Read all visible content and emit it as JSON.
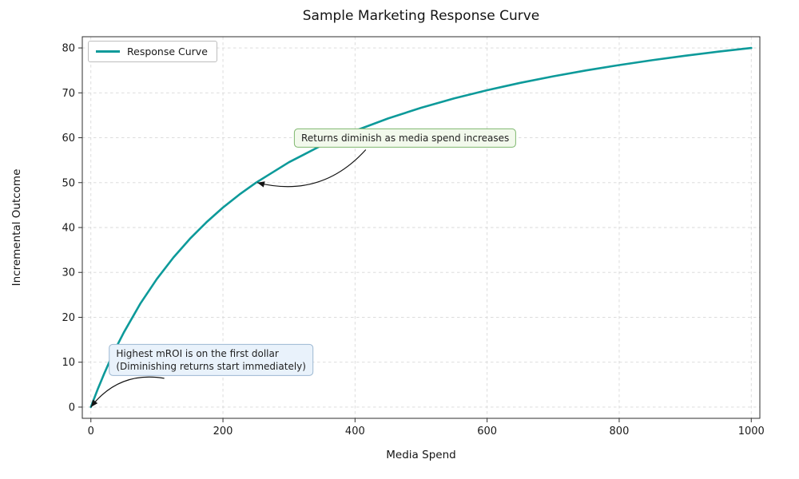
{
  "chart_data": {
    "type": "line",
    "title": "Sample Marketing Response Curve",
    "xlabel": "Media Spend",
    "ylabel": "Incremental Outcome",
    "xlim": [
      -13,
      1013
    ],
    "ylim": [
      -2.5,
      82.5
    ],
    "xticks": [
      0,
      200,
      400,
      600,
      800,
      1000
    ],
    "yticks": [
      0,
      10,
      20,
      30,
      40,
      50,
      60,
      70,
      80
    ],
    "grid": true,
    "colors": {
      "curve": "#0d9a9a",
      "grid": "#d8d8d8",
      "spine": "#2e2e2e",
      "text": "#1a1a1a",
      "background": "#ffffff"
    },
    "legend": {
      "position": "upper-left",
      "entries": [
        {
          "label": "Response Curve",
          "color": "#0d9a9a"
        }
      ]
    },
    "series": [
      {
        "name": "Response Curve",
        "color": "#0d9a9a",
        "width": 2.6,
        "x": [
          0,
          10,
          20,
          30,
          40,
          50,
          75,
          100,
          125,
          150,
          175,
          200,
          225,
          250,
          300,
          350,
          400,
          450,
          500,
          550,
          600,
          650,
          700,
          750,
          800,
          850,
          900,
          950,
          1000
        ],
        "y": [
          0,
          3.85,
          7.41,
          10.71,
          13.79,
          16.67,
          23.08,
          28.57,
          33.33,
          37.5,
          41.18,
          44.44,
          47.37,
          50,
          54.55,
          58.33,
          61.54,
          64.29,
          66.67,
          68.75,
          70.59,
          72.22,
          73.68,
          75,
          76.19,
          77.27,
          78.26,
          79.17,
          80
        ]
      }
    ],
    "annotations": [
      {
        "text": "Returns diminish as media spend increases",
        "xy": [
          252,
          50
        ],
        "xytext": [
          476,
          60
        ],
        "box_bg": "#f2f9ec",
        "box_border": "#7fb86f",
        "arrow_rad": -0.3
      },
      {
        "text_lines": [
          "Highest mROI is on the first dollar",
          "(Diminishing returns start immediately)"
        ],
        "xy": [
          0,
          0
        ],
        "xytext": [
          182,
          10.5
        ],
        "box_bg": "#e9f2fb",
        "box_border": "#9db8d2",
        "arrow_rad": 0.3
      }
    ]
  }
}
